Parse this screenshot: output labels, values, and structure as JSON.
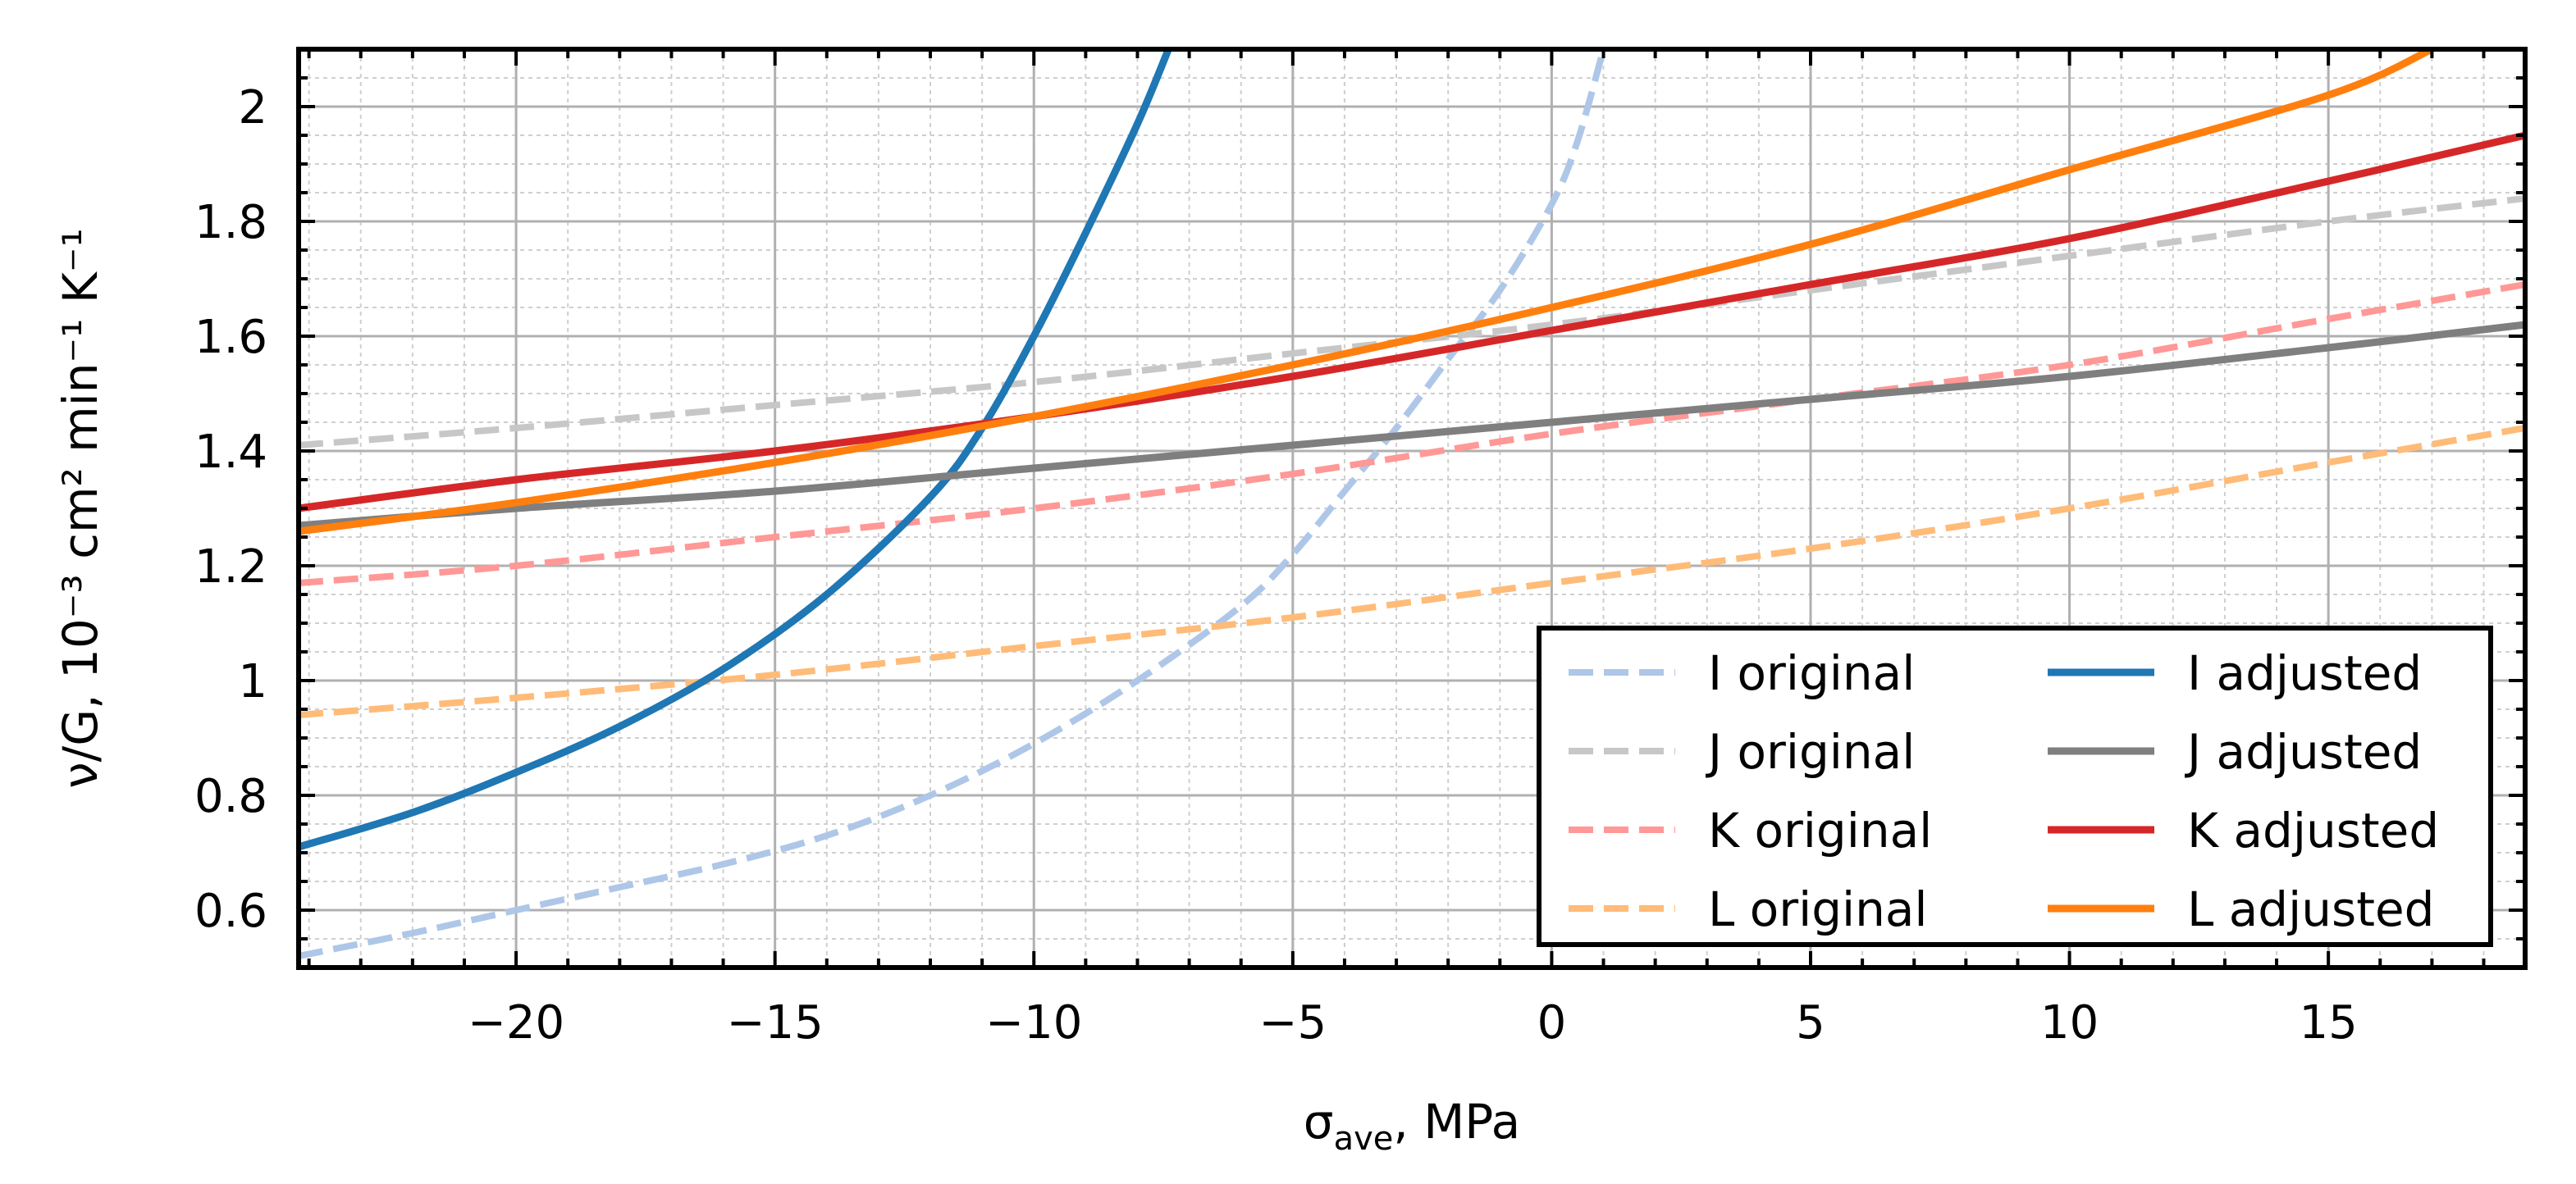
{
  "chart_data": {
    "type": "line",
    "xlabel": {
      "main": "σ",
      "sub": "ave",
      "rest": ", MPa"
    },
    "ylabel": {
      "text": "ν/G, 10⁻³ cm² min⁻¹ K⁻¹"
    },
    "xlim": [
      -24.2,
      18.8
    ],
    "ylim": [
      0.5,
      2.1
    ],
    "xticks": [
      -20,
      -15,
      -10,
      -5,
      0,
      5,
      10,
      15
    ],
    "xtick_labels": [
      "−20",
      "−15",
      "−10",
      "−5",
      "0",
      "5",
      "10",
      "15"
    ],
    "yticks": [
      0.6,
      0.8,
      1.0,
      1.2,
      1.4,
      1.6,
      1.8,
      2.0
    ],
    "ytick_labels": [
      "0.6",
      "0.8",
      "1",
      "1.2",
      "1.4",
      "1.6",
      "1.8",
      "2"
    ],
    "grid": true,
    "minor_grid": true,
    "legend_position": "bottom-right",
    "series": [
      {
        "name": "I original",
        "style": "dashed",
        "color": "#aec7e8",
        "x": [
          -24.2,
          -22,
          -20,
          -18,
          -16,
          -14,
          -12,
          -10,
          -8,
          -6,
          -5,
          -4,
          -3,
          -2,
          -1,
          0,
          0.5,
          1.0
        ],
        "y": [
          0.52,
          0.56,
          0.6,
          0.64,
          0.68,
          0.73,
          0.8,
          0.89,
          1.0,
          1.13,
          1.22,
          1.33,
          1.44,
          1.56,
          1.68,
          1.83,
          1.94,
          2.1
        ]
      },
      {
        "name": "J original",
        "style": "dashed",
        "color": "#c7c7c7",
        "x": [
          -24.2,
          -20,
          -15,
          -10,
          -5,
          0,
          5,
          10,
          15,
          18.8
        ],
        "y": [
          1.41,
          1.44,
          1.48,
          1.52,
          1.57,
          1.62,
          1.68,
          1.74,
          1.8,
          1.84
        ]
      },
      {
        "name": "K original",
        "style": "dashed",
        "color": "#ff9896",
        "x": [
          -24.2,
          -20,
          -15,
          -10,
          -5,
          0,
          5,
          10,
          15,
          18.8
        ],
        "y": [
          1.17,
          1.2,
          1.25,
          1.3,
          1.36,
          1.43,
          1.49,
          1.55,
          1.63,
          1.69
        ]
      },
      {
        "name": "L original",
        "style": "dashed",
        "color": "#ffbb78",
        "x": [
          -24.2,
          -20,
          -15,
          -10,
          -5,
          0,
          5,
          10,
          15,
          18.8
        ],
        "y": [
          0.94,
          0.97,
          1.01,
          1.06,
          1.11,
          1.17,
          1.23,
          1.3,
          1.38,
          1.44
        ]
      },
      {
        "name": "I adjusted",
        "style": "solid",
        "color": "#1f77b4",
        "x": [
          -24.2,
          -22,
          -20,
          -18,
          -16,
          -14,
          -12,
          -11,
          -10,
          -9,
          -8,
          -7.4
        ],
        "y": [
          0.71,
          0.77,
          0.84,
          0.92,
          1.02,
          1.15,
          1.32,
          1.44,
          1.6,
          1.78,
          1.97,
          2.1
        ]
      },
      {
        "name": "J adjusted",
        "style": "solid",
        "color": "#7f7f7f",
        "x": [
          -24.2,
          -20,
          -15,
          -10,
          -5,
          0,
          5,
          10,
          15,
          18.8
        ],
        "y": [
          1.27,
          1.3,
          1.33,
          1.37,
          1.41,
          1.45,
          1.49,
          1.53,
          1.58,
          1.62
        ]
      },
      {
        "name": "K adjusted",
        "style": "solid",
        "color": "#d62728",
        "x": [
          -24.2,
          -20,
          -15,
          -10,
          -5,
          0,
          5,
          10,
          15,
          18.8
        ],
        "y": [
          1.3,
          1.35,
          1.4,
          1.46,
          1.53,
          1.61,
          1.69,
          1.77,
          1.87,
          1.95
        ]
      },
      {
        "name": "L adjusted",
        "style": "solid",
        "color": "#ff7f0e",
        "x": [
          -24.2,
          -20,
          -15,
          -10,
          -5,
          0,
          5,
          10,
          15,
          17.0
        ],
        "y": [
          1.26,
          1.31,
          1.38,
          1.46,
          1.55,
          1.65,
          1.76,
          1.89,
          2.02,
          2.1
        ]
      }
    ],
    "legend_order": [
      0,
      4,
      1,
      5,
      2,
      6,
      3,
      7
    ]
  }
}
